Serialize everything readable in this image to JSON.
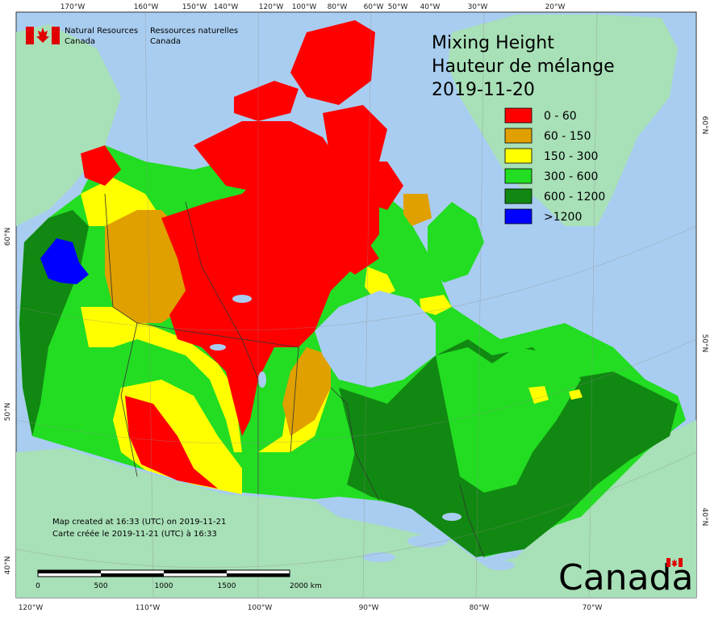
{
  "map": {
    "title_en": "Mixing Height",
    "title_fr": "Hauteur de mélange",
    "date": "2019-11-20",
    "legend": [
      {
        "label": "0 - 60",
        "color": "#ff0000"
      },
      {
        "label": "60 - 150",
        "color": "#e0a000"
      },
      {
        "label": "150 - 300",
        "color": "#ffff00"
      },
      {
        "label": "300 - 600",
        "color": "#22dd22"
      },
      {
        "label": "600 - 1200",
        "color": "#118811"
      },
      {
        "label": ">1200",
        "color": "#0000ff"
      }
    ],
    "agency_en_line1": "Natural Resources",
    "agency_en_line2": "Canada",
    "agency_fr_line1": "Ressources naturelles",
    "agency_fr_line2": "Canada",
    "created_en": "Map created at 16:33 (UTC) on 2019-11-21",
    "created_fr": "Carte créée le 2019-11-21 (UTC) à 16:33",
    "scale_labels": [
      "0",
      "500",
      "1000",
      "1500",
      "2000  km"
    ],
    "wordmark": "Canada",
    "top_ticks": [
      "170°W",
      "160°W",
      "150°W",
      "140°W",
      "120°W",
      "100°W",
      "80°W",
      "60°W",
      "50°W",
      "40°W",
      "30°W",
      "20°W"
    ],
    "bottom_ticks": [
      "120°W",
      "110°W",
      "100°W",
      "90°W",
      "80°W",
      "70°W"
    ],
    "left_ticks": [
      "60°N",
      "50°N",
      "40°N"
    ],
    "right_ticks": [
      "60°N",
      "50°N",
      "40°N"
    ]
  }
}
